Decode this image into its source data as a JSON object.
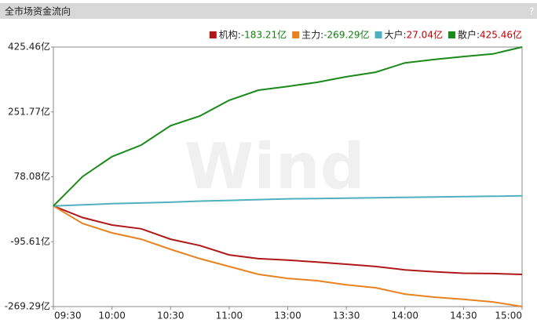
{
  "chart_data": {
    "type": "line",
    "title": "全市场资金流向",
    "help": "?",
    "watermark": "Wind",
    "x": [
      "09:30",
      "09:45",
      "10:00",
      "10:15",
      "10:30",
      "10:45",
      "11:00",
      "11:15",
      "13:00",
      "13:15",
      "13:30",
      "13:45",
      "14:00",
      "14:15",
      "14:30",
      "14:45",
      "15:00"
    ],
    "xticks": [
      "09:30",
      "10:00",
      "10:30",
      "11:00",
      "13:00",
      "13:30",
      "14:00",
      "14:30",
      "15:00"
    ],
    "ylim": [
      -269.29,
      425.46
    ],
    "yticks": [
      {
        "value": 425.46,
        "label": "425.46亿"
      },
      {
        "value": 251.77,
        "label": "251.77亿"
      },
      {
        "value": 78.08,
        "label": "78.08亿"
      },
      {
        "value": -95.61,
        "label": "-95.61亿"
      },
      {
        "value": -269.29,
        "label": "-269.29亿"
      }
    ],
    "up_color": "#c00000",
    "down_color": "#108010",
    "series": [
      {
        "name": "机构:",
        "color": "#b01818",
        "values": [
          0,
          -31,
          -51,
          -61,
          -89,
          -106,
          -131,
          -141,
          -145,
          -150,
          -156,
          -162,
          -171,
          -176,
          -180,
          -181,
          -183.21
        ],
        "value_labels": [
          null,
          null,
          null,
          null,
          null,
          null,
          null,
          null,
          null,
          null,
          null,
          null,
          null,
          null,
          null,
          null,
          "-183.21亿"
        ]
      },
      {
        "name": "主力:",
        "color": "#e8821e",
        "values": [
          0,
          -47,
          -72,
          -89,
          -116,
          -141,
          -162,
          -183,
          -194,
          -200,
          -211,
          -219,
          -236,
          -244,
          -250,
          -257,
          -269.29
        ],
        "value_labels": [
          null,
          null,
          null,
          null,
          null,
          null,
          null,
          null,
          null,
          null,
          null,
          null,
          null,
          null,
          null,
          null,
          "-269.29亿"
        ]
      },
      {
        "name": "大户:",
        "color": "#4fb0c0",
        "values": [
          0,
          3,
          6,
          8,
          10,
          13,
          15,
          17,
          19,
          20,
          21,
          22,
          23,
          24,
          25,
          26,
          27.04
        ],
        "value_labels": [
          null,
          null,
          null,
          null,
          null,
          null,
          null,
          null,
          null,
          null,
          null,
          null,
          null,
          null,
          null,
          null,
          "27.04亿"
        ]
      },
      {
        "name": "散户:",
        "color": "#1a8a1a",
        "values": [
          0,
          79,
          132,
          163,
          215,
          241,
          283,
          310,
          320,
          331,
          346,
          358,
          383,
          392,
          400,
          407,
          425.46
        ],
        "value_labels": [
          null,
          null,
          null,
          null,
          null,
          null,
          null,
          null,
          null,
          null,
          null,
          null,
          null,
          null,
          null,
          null,
          "425.46亿"
        ]
      }
    ]
  }
}
